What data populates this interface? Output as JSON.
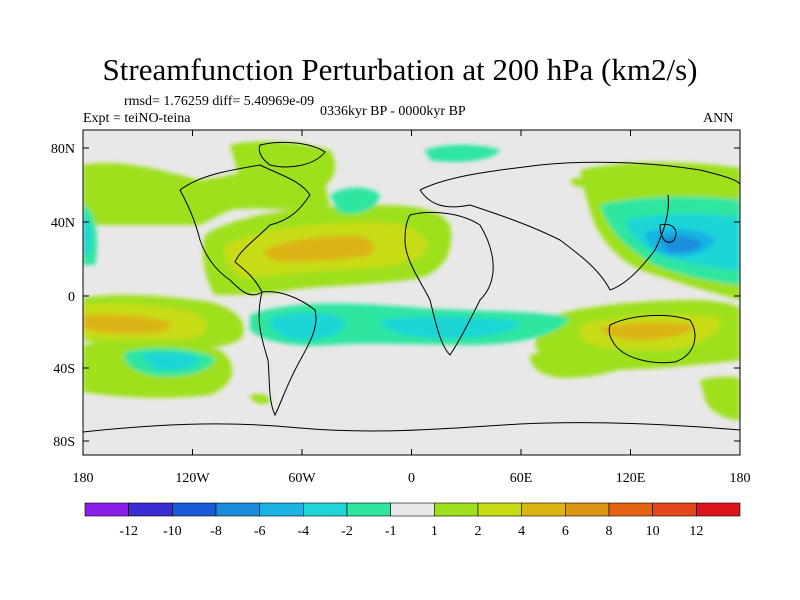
{
  "title": "Streamfunction Perturbation at 200 hPa (km2/s)",
  "stats_line": "rmsd= 1.76259 diff= 5.40969e-09",
  "experiment": "Expt = teiNO-teina",
  "period": "0336kyr BP - 0000kyr BP",
  "season": "ANN",
  "lat_ticks": [
    "80N",
    "40N",
    "0",
    "40S",
    "80S"
  ],
  "lon_ticks": [
    "180",
    "120W",
    "60W",
    "0",
    "60E",
    "120E",
    "180"
  ],
  "colorbar": {
    "colors": [
      "#8c1eec",
      "#3c2cd4",
      "#1a5ad6",
      "#1a8cdc",
      "#19b4e4",
      "#1ed6d6",
      "#2ee6a0",
      "#e8e8e8",
      "#9ee01e",
      "#c8dc14",
      "#dcb414",
      "#dc9614",
      "#e46414",
      "#e4461c",
      "#dc141c"
    ],
    "labels": [
      "-12",
      "-10",
      "-8",
      "-6",
      "-4",
      "-2",
      "-1",
      "1",
      "2",
      "4",
      "6",
      "8",
      "10",
      "12"
    ]
  }
}
